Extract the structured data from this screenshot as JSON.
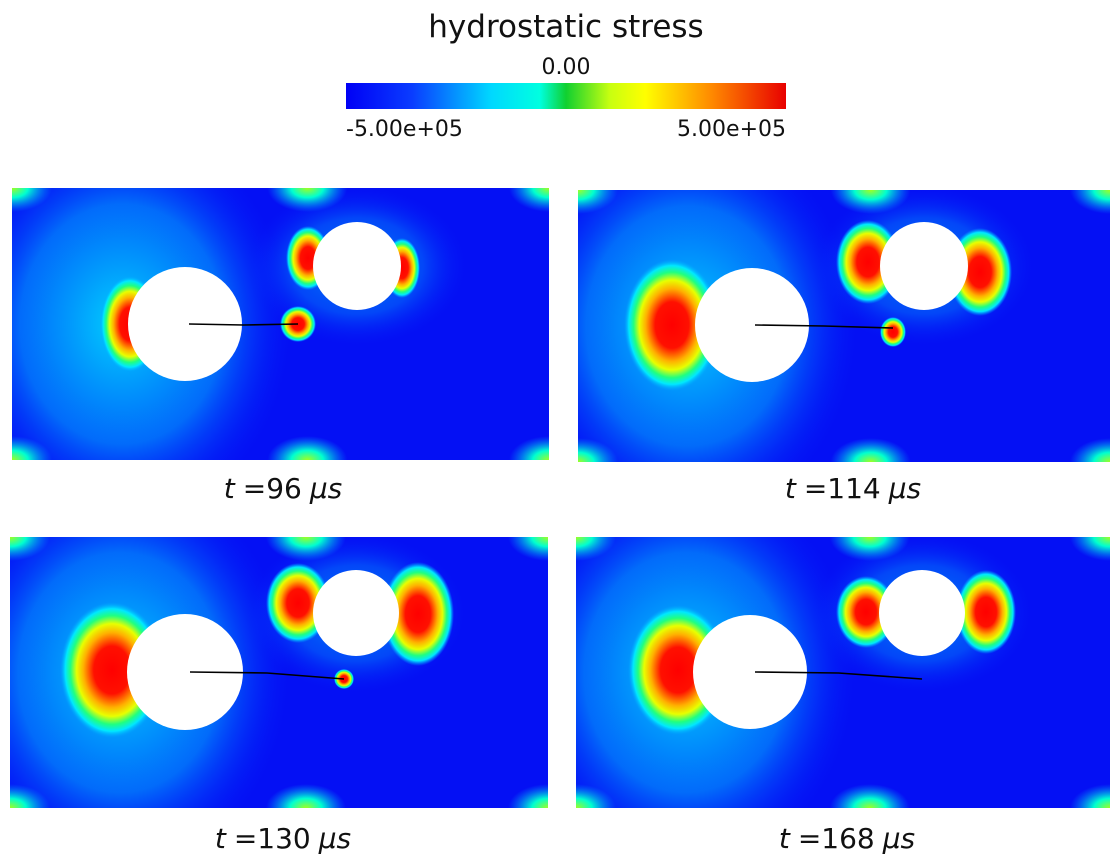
{
  "colorbar": {
    "title": "hydrostatic stress",
    "mid_label": "0.00",
    "min_label": "-5.00e+05",
    "max_label": "5.00e+05"
  },
  "panels": [
    {
      "var": "t",
      "time": "=96",
      "unit": "μs"
    },
    {
      "var": "t",
      "time": "=114",
      "unit": "μs"
    },
    {
      "var": "t",
      "time": "=130",
      "unit": "μs"
    },
    {
      "var": "t",
      "time": "=168",
      "unit": "μs"
    }
  ]
}
